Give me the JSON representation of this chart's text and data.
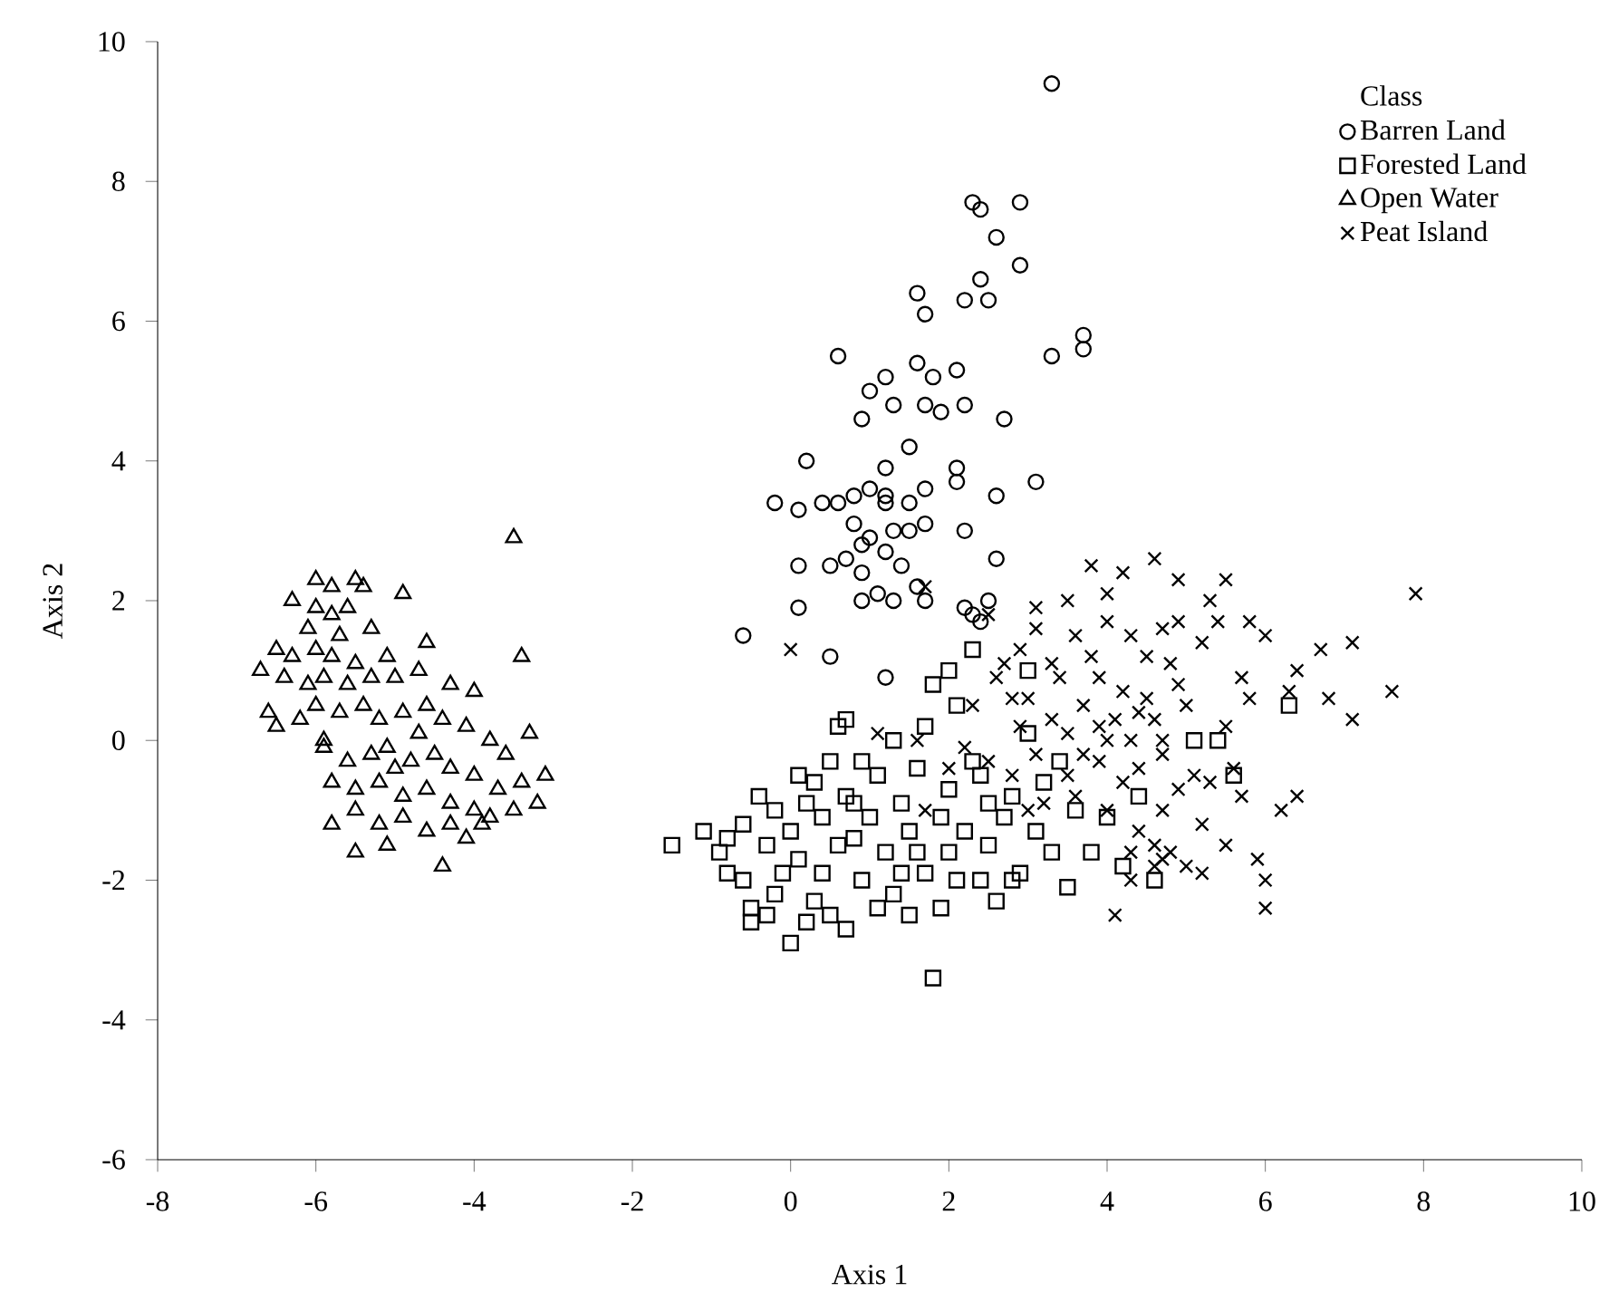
{
  "chart_data": {
    "type": "scatter",
    "xlabel": "Axis 1",
    "ylabel": "Axis 2",
    "legend_title": "Class",
    "legend": "top right",
    "grid": false,
    "xlim": [
      -8,
      10
    ],
    "xticks": [
      -8,
      -6,
      -4,
      -2,
      0,
      2,
      4,
      6,
      8,
      10
    ],
    "ylim": [
      -6,
      10
    ],
    "yticks": [
      -6,
      -4,
      -2,
      0,
      2,
      4,
      6,
      8,
      10
    ],
    "series": [
      {
        "name": "Barren Land",
        "color": "#000000",
        "marker": "circle",
        "x": [
          3.3,
          2.3,
          2.4,
          2.9,
          2.6,
          1.6,
          2.2,
          2.5,
          2.9,
          2.4,
          1.7,
          3.3,
          3.7,
          3.7,
          0.6,
          1.6,
          1.0,
          1.2,
          1.8,
          2.1,
          1.3,
          1.7,
          2.2,
          1.9,
          0.9,
          1.5,
          2.7,
          0.2,
          1.2,
          2.1,
          2.1,
          3.1,
          0.4,
          0.6,
          0.8,
          1.0,
          1.2,
          1.5,
          1.7,
          1.7,
          2.6,
          -0.2,
          0.1,
          0.8,
          1.0,
          1.3,
          1.5,
          1.2,
          2.2,
          0.1,
          0.5,
          0.7,
          0.9,
          1.2,
          1.4,
          0.9,
          2.6,
          0.1,
          0.9,
          1.1,
          1.3,
          1.7,
          2.2,
          2.5,
          -0.6,
          0.5,
          1.2,
          2.4,
          2.3,
          1.6
        ],
        "values": [
          9.4,
          7.7,
          7.6,
          7.7,
          7.2,
          6.4,
          6.3,
          6.3,
          6.8,
          6.6,
          6.1,
          5.5,
          5.8,
          5.6,
          5.5,
          5.4,
          5.0,
          5.2,
          5.2,
          5.3,
          4.8,
          4.8,
          4.8,
          4.7,
          4.6,
          4.2,
          4.6,
          4.0,
          3.9,
          3.9,
          3.7,
          3.7,
          3.4,
          3.4,
          3.5,
          3.6,
          3.5,
          3.4,
          3.6,
          3.1,
          3.5,
          3.4,
          3.3,
          3.1,
          2.9,
          3.0,
          3.0,
          3.4,
          3.0,
          2.5,
          2.5,
          2.6,
          2.8,
          2.7,
          2.5,
          2.4,
          2.6,
          1.9,
          2.0,
          2.1,
          2.0,
          2.0,
          1.9,
          2.0,
          1.5,
          1.2,
          0.9,
          1.7,
          1.8,
          2.2
        ]
      },
      {
        "name": "Forested Land",
        "color": "#000000",
        "marker": "square",
        "x": [
          -1.5,
          -1.1,
          -0.9,
          -0.8,
          -0.6,
          -0.5,
          -0.5,
          -0.2,
          -0.3,
          -0.6,
          -0.8,
          -0.4,
          -0.2,
          0.0,
          0.1,
          0.0,
          0.3,
          0.5,
          0.4,
          0.2,
          0.3,
          0.5,
          0.6,
          0.7,
          0.7,
          0.8,
          0.9,
          0.7,
          1.0,
          1.1,
          1.2,
          1.3,
          1.4,
          1.5,
          1.5,
          1.6,
          1.7,
          1.7,
          1.8,
          1.9,
          2.0,
          2.0,
          2.1,
          2.2,
          2.3,
          2.3,
          2.4,
          2.5,
          2.5,
          2.6,
          2.8,
          2.9,
          3.1,
          3.2,
          3.3,
          3.5,
          3.6,
          3.8,
          4.0,
          4.2,
          4.6,
          5.1,
          6.3,
          5.6,
          5.4,
          3.0,
          2.0,
          1.8,
          0.1,
          -0.1,
          0.4,
          0.9,
          1.3,
          1.1,
          1.6,
          2.7,
          0.6,
          -0.3,
          2.1,
          3.0,
          0.8,
          1.4,
          1.9,
          0.2,
          2.4,
          3.4,
          4.4,
          2.8
        ],
        "values": [
          -1.5,
          -1.3,
          -1.6,
          -1.9,
          -2.0,
          -2.6,
          -2.4,
          -2.2,
          -1.5,
          -1.2,
          -1.4,
          -0.8,
          -1.0,
          -1.3,
          -1.7,
          -2.9,
          -2.3,
          -2.5,
          -1.9,
          -0.9,
          -0.6,
          -0.3,
          0.2,
          0.3,
          -0.8,
          -1.4,
          -2.0,
          -2.7,
          -1.1,
          -0.5,
          -1.6,
          -2.2,
          -0.9,
          -1.3,
          -2.5,
          -0.4,
          0.2,
          -1.9,
          -3.4,
          -1.1,
          -0.7,
          -1.6,
          0.5,
          -1.3,
          -0.3,
          1.3,
          -2.0,
          -0.9,
          -1.5,
          -2.3,
          -0.8,
          -1.9,
          -1.3,
          -0.6,
          -1.6,
          -2.1,
          -1.0,
          -1.6,
          -1.1,
          -1.8,
          -2.0,
          0.0,
          0.5,
          -0.5,
          0.0,
          1.0,
          1.0,
          0.8,
          -0.5,
          -1.9,
          -1.1,
          -0.3,
          0.0,
          -2.4,
          -1.6,
          -1.1,
          -1.5,
          -2.5,
          -2.0,
          0.1,
          -0.9,
          -1.9,
          -2.4,
          -2.6,
          -0.5,
          -0.3,
          -0.8,
          -2.0
        ]
      },
      {
        "name": "Open Water",
        "color": "#000000",
        "marker": "triangle",
        "x": [
          -6.0,
          -5.8,
          -5.5,
          -5.4,
          -4.9,
          -3.5,
          -3.4,
          -6.3,
          -6.0,
          -5.8,
          -5.6,
          -6.1,
          -5.7,
          -5.3,
          -6.5,
          -6.3,
          -6.0,
          -5.8,
          -5.5,
          -5.1,
          -4.6,
          -6.7,
          -6.4,
          -6.1,
          -5.9,
          -5.6,
          -5.3,
          -5.0,
          -4.7,
          -4.3,
          -4.0,
          -6.6,
          -6.5,
          -6.2,
          -6.0,
          -5.7,
          -5.4,
          -5.2,
          -4.9,
          -4.6,
          -4.4,
          -4.1,
          -3.8,
          -3.6,
          -3.3,
          -3.1,
          -5.9,
          -5.6,
          -5.3,
          -5.1,
          -4.8,
          -4.5,
          -4.3,
          -4.0,
          -3.7,
          -3.4,
          -3.2,
          -5.8,
          -5.5,
          -5.2,
          -4.9,
          -4.6,
          -4.3,
          -4.0,
          -3.8,
          -3.5,
          -5.8,
          -5.5,
          -5.2,
          -4.9,
          -4.6,
          -4.3,
          -4.1,
          -5.5,
          -5.1,
          -4.4,
          -3.9,
          -5.0,
          -4.7,
          -5.9
        ],
        "values": [
          2.3,
          2.2,
          2.3,
          2.2,
          2.1,
          2.9,
          1.2,
          2.0,
          1.9,
          1.8,
          1.9,
          1.6,
          1.5,
          1.6,
          1.3,
          1.2,
          1.3,
          1.2,
          1.1,
          1.2,
          1.4,
          1.0,
          0.9,
          0.8,
          0.9,
          0.8,
          0.9,
          0.9,
          1.0,
          0.8,
          0.7,
          0.4,
          0.2,
          0.3,
          0.5,
          0.4,
          0.5,
          0.3,
          0.4,
          0.5,
          0.3,
          0.2,
          0.0,
          -0.2,
          0.1,
          -0.5,
          -0.1,
          -0.3,
          -0.2,
          -0.1,
          -0.3,
          -0.2,
          -0.4,
          -0.5,
          -0.7,
          -0.6,
          -0.9,
          -0.6,
          -0.7,
          -0.6,
          -0.8,
          -0.7,
          -0.9,
          -1.0,
          -1.1,
          -1.0,
          -1.2,
          -1.0,
          -1.2,
          -1.1,
          -1.3,
          -1.2,
          -1.4,
          -1.6,
          -1.5,
          -1.8,
          -1.2,
          -0.4,
          0.1,
          0.0
        ]
      },
      {
        "name": "Peat Island",
        "color": "#000000",
        "marker": "cross",
        "x": [
          0.0,
          1.7,
          2.5,
          3.8,
          4.2,
          4.6,
          4.9,
          5.5,
          5.8,
          5.4,
          4.0,
          3.5,
          3.1,
          2.9,
          2.6,
          2.3,
          1.6,
          1.1,
          2.0,
          3.3,
          3.8,
          4.3,
          4.7,
          5.2,
          6.0,
          6.7,
          7.1,
          7.9,
          6.4,
          6.8,
          7.1,
          7.6,
          6.3,
          5.8,
          5.5,
          4.9,
          4.5,
          4.1,
          3.7,
          3.3,
          2.9,
          2.8,
          3.1,
          3.5,
          3.9,
          4.3,
          4.7,
          5.1,
          5.6,
          6.4,
          4.4,
          4.2,
          3.9,
          3.6,
          3.2,
          2.8,
          2.5,
          4.0,
          4.4,
          4.8,
          4.6,
          4.3,
          4.1,
          5.0,
          5.2,
          5.5,
          5.9,
          6.0,
          6.0,
          5.2,
          4.7,
          4.9,
          5.3,
          3.4,
          4.8,
          5.0,
          3.0,
          3.6,
          4.0,
          4.5,
          4.6,
          4.0,
          3.5,
          2.2,
          1.7,
          5.7,
          3.7,
          4.2,
          4.4,
          3.9,
          4.7,
          4.3,
          4.6,
          4.7,
          5.7,
          6.2,
          4.9,
          5.3,
          3.1,
          2.7,
          3.0
        ],
        "values": [
          1.3,
          2.2,
          1.8,
          2.5,
          2.4,
          2.6,
          2.3,
          2.3,
          1.7,
          1.7,
          2.1,
          2.0,
          1.6,
          1.3,
          0.9,
          0.5,
          0.0,
          0.1,
          -0.4,
          1.1,
          1.2,
          1.5,
          1.6,
          1.4,
          1.5,
          1.3,
          1.4,
          2.1,
          1.0,
          0.6,
          0.3,
          0.7,
          0.7,
          0.6,
          0.2,
          0.8,
          0.6,
          0.3,
          0.5,
          0.3,
          0.2,
          0.6,
          -0.2,
          -0.5,
          -0.3,
          0.0,
          -0.2,
          -0.5,
          -0.4,
          -0.8,
          0.4,
          0.7,
          0.9,
          -0.8,
          -0.9,
          -0.5,
          -0.3,
          -1.0,
          -1.3,
          -1.6,
          -1.8,
          -2.0,
          -2.5,
          -1.8,
          -1.2,
          -1.5,
          -1.7,
          -2.0,
          -2.4,
          -1.9,
          -1.0,
          -0.7,
          -0.6,
          0.9,
          1.1,
          0.5,
          0.6,
          1.5,
          1.7,
          1.2,
          0.3,
          0.0,
          0.1,
          -0.1,
          -1.0,
          0.9,
          -0.2,
          -0.6,
          -0.4,
          0.2,
          0.0,
          -1.6,
          -1.5,
          -1.7,
          -0.8,
          -1.0,
          1.7,
          2.0,
          1.9,
          1.1,
          -1.0
        ]
      }
    ]
  }
}
